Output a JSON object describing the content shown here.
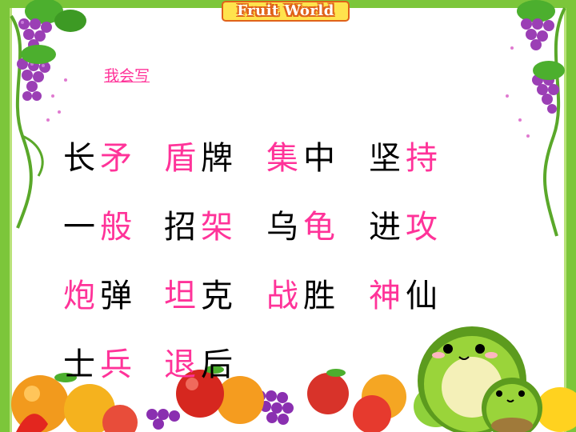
{
  "header": {
    "brand": "Fruit World"
  },
  "link": {
    "label": "我会写"
  },
  "words": [
    [
      {
        "c1": "长",
        "c2": "矛"
      },
      {
        "c1": "盾",
        "c2": "牌"
      },
      {
        "c1": "集",
        "c2": "中"
      },
      {
        "c1": "坚",
        "c2": "持"
      }
    ],
    [
      {
        "c1": "一",
        "c2": "般"
      },
      {
        "c1": "招",
        "c2": "架"
      },
      {
        "c1": "乌",
        "c2": "龟"
      },
      {
        "c1": "进",
        "c2": "攻"
      }
    ],
    [
      {
        "c1": "炮",
        "c2": "弹"
      },
      {
        "c1": "坦",
        "c2": "克"
      },
      {
        "c1": "战",
        "c2": "胜"
      },
      {
        "c1": "神",
        "c2": "仙"
      }
    ],
    [
      {
        "c1": "士",
        "c2": "兵"
      },
      {
        "c1": "退",
        "c2": "后"
      }
    ]
  ],
  "colors": {
    "highlight": "#ff3399",
    "text": "#000000",
    "frame": "#7cc63a"
  }
}
